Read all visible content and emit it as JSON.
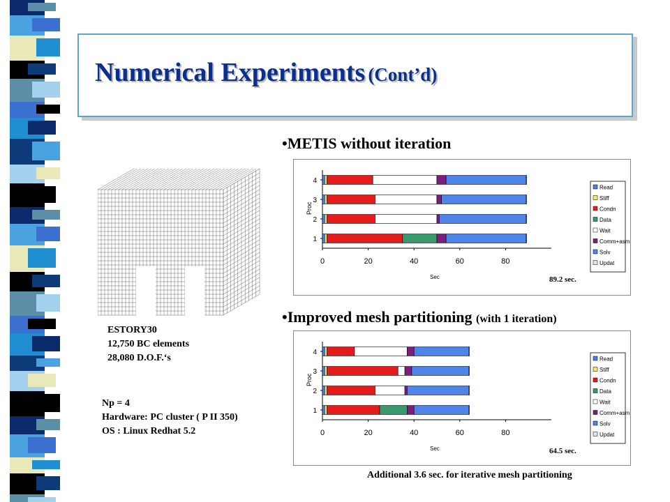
{
  "title": {
    "main": "Numerical Experiments",
    "sub": "(Cont’d)"
  },
  "bullets": {
    "metis": "•METIS without iteration",
    "improved_main": "•Improved mesh partitioning",
    "improved_sub": "(with 1 iteration)"
  },
  "model_info": [
    "ESTORY30",
    "12,750  BC elements",
    "28,080 D.O.F.‘s"
  ],
  "run_info": [
    "Np = 4",
    "Hardware: PC cluster ( P II 350)",
    "OS : Linux Redhat 5.2"
  ],
  "additional_note": "Additional 3.6 sec. for iterative mesh partitioning",
  "colors": {
    "Read": "#4f7fe0",
    "Stiff": "#f4ec5a",
    "Condn": "#e41c1c",
    "Data": "#3a9a6e",
    "Wait": "#ffffff",
    "Comm+asm": "#7b1f7a",
    "Solv": "#4f84e8",
    "Updat": "#dfe3ff"
  },
  "chart_data": [
    {
      "type": "bar",
      "orientation": "horizontal",
      "stacked": true,
      "categories": [
        "1",
        "2",
        "3",
        "4"
      ],
      "xlabel": "Sec",
      "ylabel": "Proc",
      "xlim": [
        0,
        100
      ],
      "xticks": [
        "0",
        "20",
        "40",
        "60",
        "80"
      ],
      "legend_position": "right",
      "total_label": "89.2 sec.",
      "series": [
        {
          "name": "Read",
          "values": [
            1,
            1,
            1,
            1
          ]
        },
        {
          "name": "Stiff",
          "values": [
            1,
            1,
            1,
            1
          ]
        },
        {
          "name": "Condn",
          "values": [
            33,
            21,
            21,
            20
          ]
        },
        {
          "name": "Data",
          "values": [
            15,
            0,
            0,
            0
          ]
        },
        {
          "name": "Wait",
          "values": [
            0,
            27,
            27,
            28
          ]
        },
        {
          "name": "Comm+asm",
          "values": [
            4,
            1,
            2,
            4
          ]
        },
        {
          "name": "Solv",
          "values": [
            35,
            38,
            37,
            35
          ]
        },
        {
          "name": "Updat",
          "values": [
            0.2,
            0.2,
            0.2,
            0.2
          ]
        }
      ]
    },
    {
      "type": "bar",
      "orientation": "horizontal",
      "stacked": true,
      "categories": [
        "1",
        "2",
        "3",
        "4"
      ],
      "xlabel": "Sec",
      "ylabel": "Proc",
      "xlim": [
        0,
        100
      ],
      "xticks": [
        "0",
        "20",
        "40",
        "60",
        "80"
      ],
      "legend_position": "right",
      "total_label": "64.5  sec.",
      "series": [
        {
          "name": "Read",
          "values": [
            1,
            1,
            1,
            1
          ]
        },
        {
          "name": "Stiff",
          "values": [
            1,
            1,
            1,
            1
          ]
        },
        {
          "name": "Condn",
          "values": [
            23,
            21,
            31,
            12
          ]
        },
        {
          "name": "Data",
          "values": [
            12,
            0,
            0,
            0
          ]
        },
        {
          "name": "Wait",
          "values": [
            0,
            13,
            3,
            23
          ]
        },
        {
          "name": "Comm+asm",
          "values": [
            3,
            1,
            3,
            3
          ]
        },
        {
          "name": "Solv",
          "values": [
            24,
            27,
            25,
            24
          ]
        },
        {
          "name": "Updat",
          "values": [
            0.2,
            0.2,
            0.2,
            0.2
          ]
        }
      ]
    }
  ]
}
